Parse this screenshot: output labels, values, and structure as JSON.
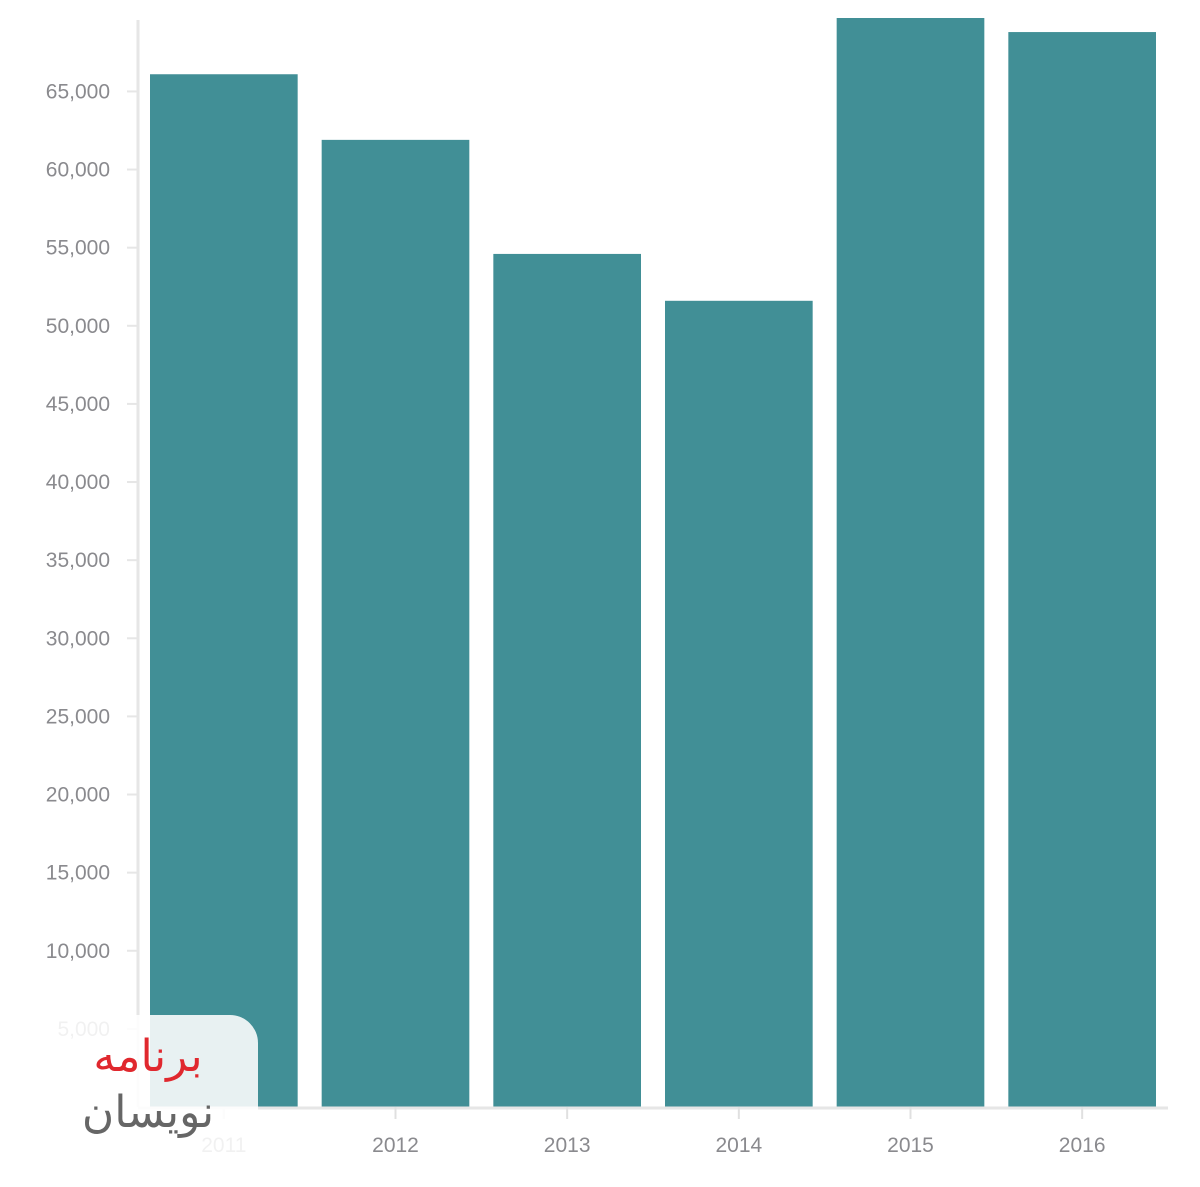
{
  "chart_data": {
    "type": "bar",
    "title": "",
    "xlabel": "",
    "ylabel": "",
    "categories": [
      "2011",
      "2012",
      "2013",
      "2014",
      "2015",
      "2016"
    ],
    "values": [
      66100,
      61900,
      54600,
      51600,
      69700,
      68800
    ],
    "ylim": [
      0,
      69700
    ],
    "yticks": [
      5000,
      10000,
      15000,
      20000,
      25000,
      30000,
      35000,
      40000,
      45000,
      50000,
      55000,
      60000,
      65000
    ],
    "ytick_labels": [
      "5,000",
      "10,000",
      "15,000",
      "20,000",
      "25,000",
      "30,000",
      "35,000",
      "40,000",
      "45,000",
      "50,000",
      "55,000",
      "60,000",
      "65,000"
    ],
    "grid": false,
    "bar_color": "#418f96"
  },
  "watermark": {
    "line1": "برنامه",
    "line2": "نویسان"
  }
}
